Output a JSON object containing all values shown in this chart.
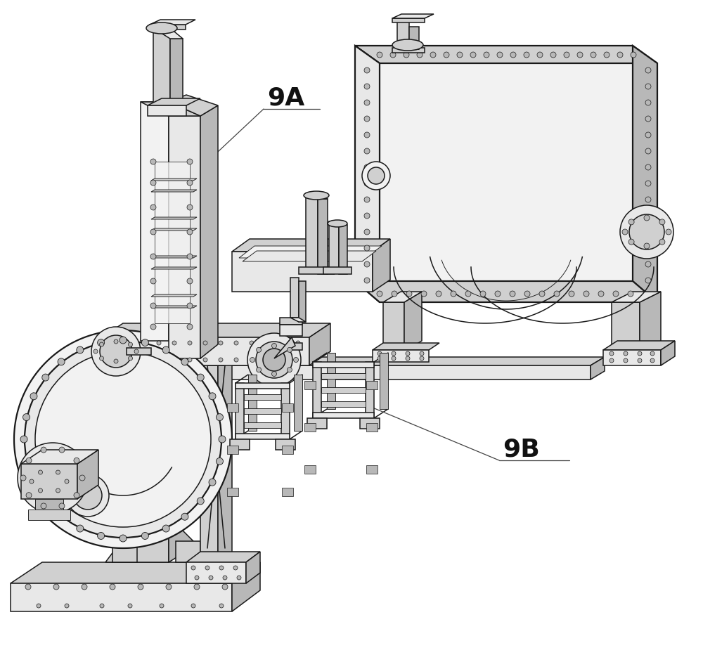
{
  "background_color": "#ffffff",
  "line_color": "#1a1a1a",
  "line_width": 1.1,
  "lw_thin": 0.65,
  "lw_thick": 1.6,
  "label_9A": "9A",
  "label_9B": "9B",
  "label_fontsize": 26,
  "label_fontweight": "bold",
  "figsize": [
    10.0,
    9.32
  ],
  "dpi": 100,
  "gray_light": "#e8e8e8",
  "gray_mid": "#d0d0d0",
  "gray_dark": "#b8b8b8",
  "gray_white": "#f2f2f2",
  "annotation_color": "#444444"
}
